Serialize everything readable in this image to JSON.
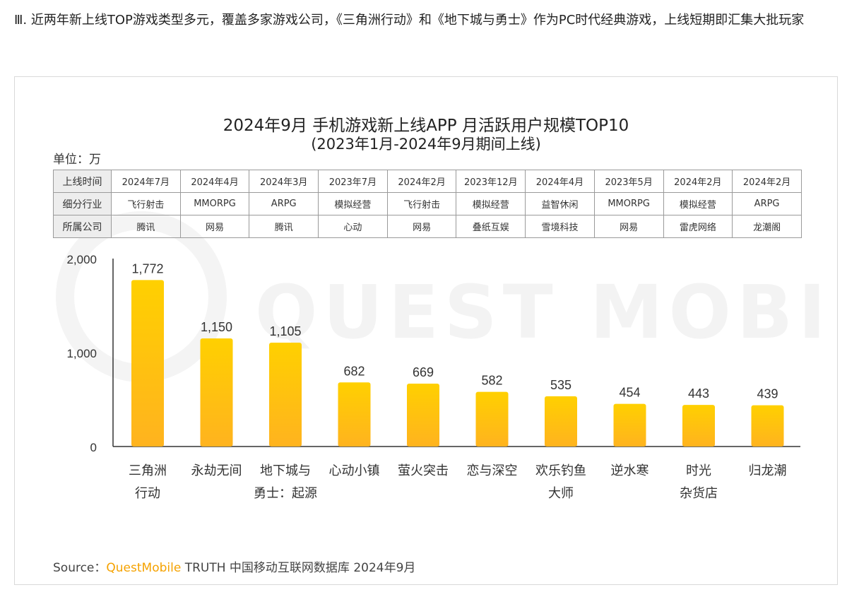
{
  "heading": "Ⅲ. 近两年新上线TOP游戏类型多元，覆盖多家游戏公司，《三角洲行动》和《地下城与勇士》作为PC时代经典游戏，上线短期即汇集大批玩家",
  "colors": {
    "bar_top": "#ffd000",
    "bar_bottom": "#ffb31f",
    "source_brand": "#f5a200"
  },
  "table": {
    "row_labels": [
      "上线时间",
      "细分行业",
      "所属公司"
    ],
    "rows": [
      [
        "2024年7月",
        "2024年4月",
        "2024年3月",
        "2023年7月",
        "2024年2月",
        "2023年12月",
        "2024年4月",
        "2023年5月",
        "2024年2月",
        "2024年2月"
      ],
      [
        "飞行射击",
        "MMORPG",
        "ARPG",
        "模拟经营",
        "飞行射击",
        "模拟经营",
        "益智休闲",
        "MMORPG",
        "模拟经营",
        "ARPG"
      ],
      [
        "腾讯",
        "网易",
        "腾讯",
        "心动",
        "网易",
        "叠纸互娱",
        "雪境科技",
        "网易",
        "雷虎网络",
        "龙潮阁"
      ]
    ]
  },
  "chart_data": {
    "type": "bar",
    "title": "2024年9月 手机游戏新上线APP 月活跃用户规模TOP10",
    "subtitle": "(2023年1月-2024年9月期间上线)",
    "unit_label": "单位：万",
    "categories": [
      [
        "三角洲",
        "行动"
      ],
      [
        "永劫无间"
      ],
      [
        "地下城与",
        "勇士：起源"
      ],
      [
        "心动小镇"
      ],
      [
        "萤火突击"
      ],
      [
        "恋与深空"
      ],
      [
        "欢乐钓鱼",
        "大师"
      ],
      [
        "逆水寒"
      ],
      [
        "时光",
        "杂货店"
      ],
      [
        "归龙潮"
      ]
    ],
    "values": [
      1772,
      1150,
      1105,
      682,
      669,
      582,
      535,
      454,
      443,
      439
    ],
    "value_labels": [
      "1,772",
      "1,150",
      "1,105",
      "682",
      "669",
      "582",
      "535",
      "454",
      "443",
      "439"
    ],
    "ylim": [
      0,
      2000
    ],
    "yticks": [
      {
        "value": 0,
        "label": "0"
      },
      {
        "value": 1000,
        "label": "1,000"
      },
      {
        "value": 2000,
        "label": "2,000"
      }
    ],
    "grid": false,
    "legend": "none"
  },
  "source": {
    "prefix": "Source：",
    "brand": "QuestMobile",
    "rest": " TRUTH 中国移动互联网数据库 2024年9月"
  },
  "watermark": "QUEST MOBILE"
}
